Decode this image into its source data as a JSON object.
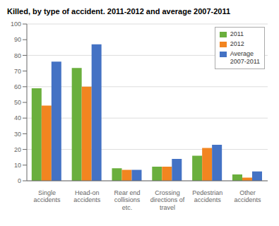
{
  "chart_data": {
    "type": "bar",
    "title": "Killed, by type of accident. 2011-2012 and average 2007-2011",
    "categories": [
      "Single\naccidents",
      "Head-on\naccidents",
      "Rear end\ncollisions\netc.",
      "Crossing\ndirections of\ntravel",
      "Pedestrian\naccidents",
      "Other\naccidents"
    ],
    "series": [
      {
        "name": "2011",
        "color": "#6AAF3D",
        "values": [
          59,
          72,
          8,
          9,
          16,
          4
        ]
      },
      {
        "name": "2012",
        "color": "#F28520",
        "values": [
          48,
          60,
          7,
          9,
          21,
          2
        ]
      },
      {
        "name": "Average\n2007-2011",
        "color": "#4472C4",
        "values": [
          76,
          87,
          7,
          14,
          23,
          6
        ]
      }
    ],
    "ylim": [
      0,
      100
    ],
    "yticks": [
      0,
      10,
      20,
      30,
      40,
      50,
      60,
      70,
      80,
      90,
      100
    ],
    "grid": true,
    "legend": "upper right"
  }
}
